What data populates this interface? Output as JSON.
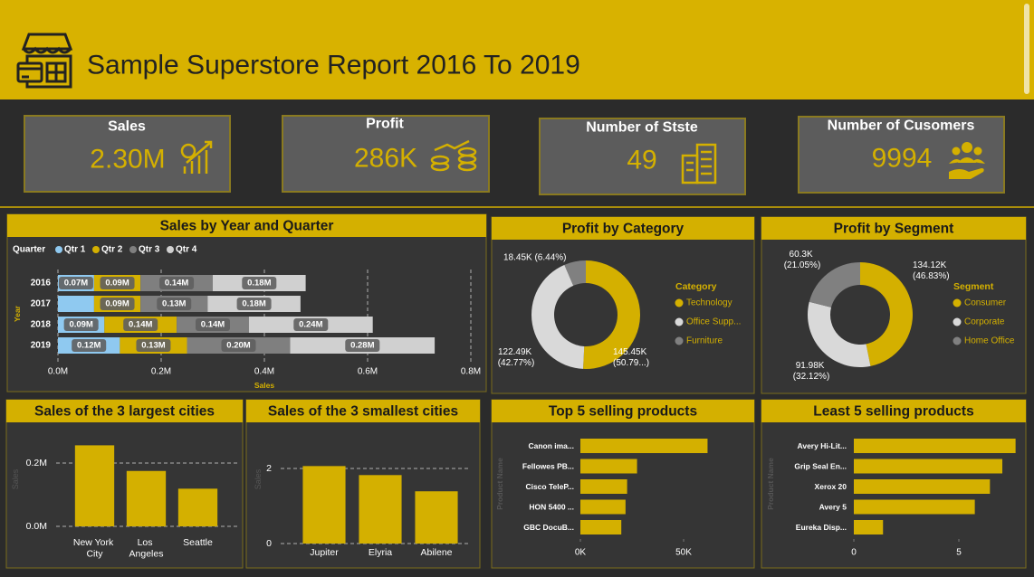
{
  "header": {
    "title": "Sample Superstore Report 2016 To 2019"
  },
  "kpis": [
    {
      "label": "Sales",
      "value": "2.30M"
    },
    {
      "label": "Profit",
      "value": "286K"
    },
    {
      "label": "Number of Stste",
      "value": 49
    },
    {
      "label": "Number of Cusomers",
      "value": 9994
    }
  ],
  "chart_data": [
    {
      "type": "bar",
      "orientation": "horizontal",
      "stacked": true,
      "title": "Sales by Year and Quarter",
      "legend_title": "Quarter",
      "x_label": "Sales",
      "y_label": "Year",
      "categories": [
        "2016",
        "2017",
        "2018",
        "2019"
      ],
      "series": [
        {
          "name": "Qtr 1",
          "color": "#8fc9f0",
          "values": [
            0.07,
            0.07,
            0.09,
            0.12
          ],
          "value_labels": [
            "0.07M",
            null,
            "0.09M",
            "0.12M"
          ]
        },
        {
          "name": "Qtr 2",
          "color": "#d4b000",
          "values": [
            0.09,
            0.09,
            0.14,
            0.13
          ],
          "value_labels": [
            "0.09M",
            "0.09M",
            "0.14M",
            "0.13M"
          ]
        },
        {
          "name": "Qtr 3",
          "color": "#7f7f7f",
          "values": [
            0.14,
            0.13,
            0.14,
            0.2
          ],
          "value_labels": [
            "0.14M",
            "0.13M",
            "0.14M",
            "0.20M"
          ]
        },
        {
          "name": "Qtr 4",
          "color": "#d0d0d0",
          "values": [
            0.18,
            0.18,
            0.24,
            0.28
          ],
          "value_labels": [
            "0.18M",
            "0.18M",
            "0.24M",
            "0.28M"
          ]
        }
      ],
      "xlim": [
        0,
        0.8
      ],
      "xticks": [
        {
          "value": 0,
          "label": "0.0M"
        },
        {
          "value": 0.2,
          "label": "0.2M"
        },
        {
          "value": 0.4,
          "label": "0.4M"
        },
        {
          "value": 0.6,
          "label": "0.6M"
        },
        {
          "value": 0.8,
          "label": "0.8M"
        }
      ],
      "grid": true
    },
    {
      "type": "donut",
      "title": "Profit by Category",
      "legend_title": "Category",
      "categories": [
        "Technology",
        "Office Supp...",
        "Furniture"
      ],
      "values": [
        145.45,
        122.49,
        18.45
      ],
      "value_labels": [
        "145.45K (50.79...)",
        "122.49K (42.77%)",
        "18.45K (6.44%)"
      ],
      "colors": [
        "#d4b000",
        "#d9d9d9",
        "#808080"
      ]
    },
    {
      "type": "donut",
      "title": "Profit by Segment",
      "legend_title": "Segment",
      "categories": [
        "Consumer",
        "Corporate",
        "Home Office"
      ],
      "values": [
        134.12,
        91.98,
        60.3
      ],
      "value_labels": [
        "134.12K (46.83%)",
        "91.98K (32.12%)",
        "60.3K (21.05%)"
      ],
      "colors": [
        "#d4b000",
        "#d9d9d9",
        "#808080"
      ]
    },
    {
      "type": "bar",
      "title": "Sales of the 3 largest cities",
      "y_label": "Sales",
      "categories": [
        "New York City",
        "Los Angeles",
        "Seattle"
      ],
      "values": [
        0.256,
        0.175,
        0.119
      ],
      "color": "#d4b000",
      "ylim": [
        0,
        0.3
      ],
      "yticks": [
        {
          "value": 0,
          "label": "0.0M"
        },
        {
          "value": 0.2,
          "label": "0.2M"
        }
      ],
      "grid": true
    },
    {
      "type": "bar",
      "title": "Sales of the 3 smallest cities",
      "y_label": "Sales",
      "categories": [
        "Jupiter",
        "Elyria",
        "Abilene"
      ],
      "values": [
        2.064,
        1.824,
        1.392
      ],
      "color": "#d4b000",
      "ylim": [
        0,
        2.4
      ],
      "yticks": [
        0,
        2
      ],
      "grid": true
    },
    {
      "type": "bar",
      "orientation": "horizontal",
      "title": "Top 5 selling products",
      "y_label": "Product Name",
      "categories": [
        "Canon ima...",
        "Fellowes PB...",
        "Cisco TeleP...",
        "HON 5400 ...",
        "GBC DocuB..."
      ],
      "values": [
        61.6,
        27.45,
        22.64,
        21.87,
        19.82
      ],
      "color": "#d4b000",
      "xlim": [
        0,
        70
      ],
      "xticks": [
        {
          "value": 0,
          "label": "0K"
        },
        {
          "value": 50,
          "label": "50K"
        }
      ],
      "grid": false
    },
    {
      "type": "bar",
      "orientation": "horizontal",
      "title": "Least 5 selling products",
      "y_label": "Product Name",
      "categories": [
        "Avery Hi-Lit...",
        "Grip Seal En...",
        "Xerox 20",
        "Avery 5",
        "Eureka Disp..."
      ],
      "values": [
        7.7,
        7.07,
        6.48,
        5.76,
        1.39
      ],
      "color": "#d4b000",
      "xlim": [
        0,
        8
      ],
      "xticks": [
        0,
        5
      ],
      "grid": false
    }
  ]
}
